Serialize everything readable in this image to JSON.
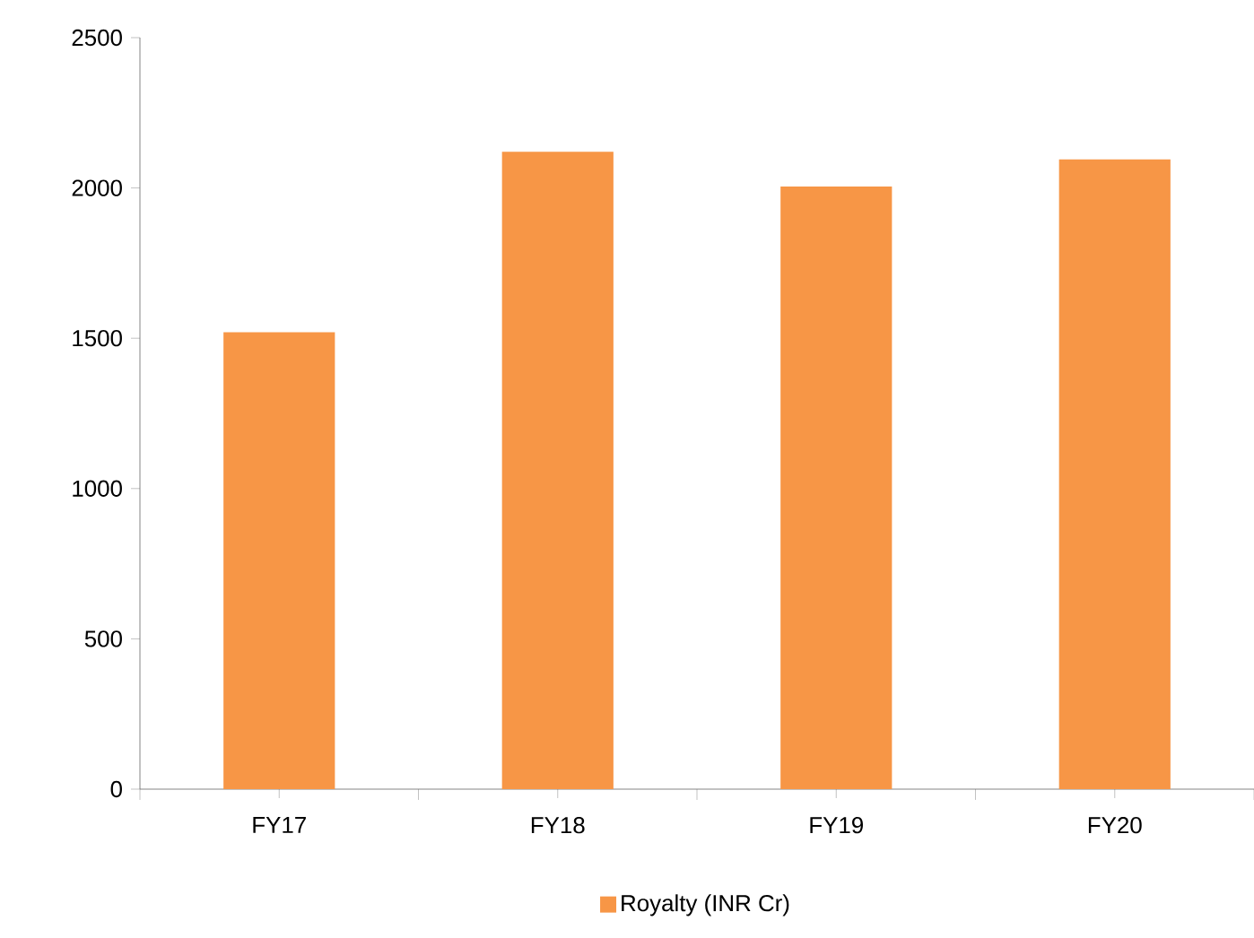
{
  "chart_data": {
    "type": "bar",
    "categories": [
      "FY17",
      "FY18",
      "FY19",
      "FY20"
    ],
    "series": [
      {
        "name": "Royalty (INR Cr)",
        "color": "#f79646",
        "values": [
          1520,
          2120,
          2005,
          2095
        ]
      }
    ],
    "ylim": [
      0,
      2500
    ],
    "yticks": [
      0,
      500,
      1000,
      1500,
      2000,
      2500
    ],
    "grid": false,
    "legend": "bottom"
  }
}
